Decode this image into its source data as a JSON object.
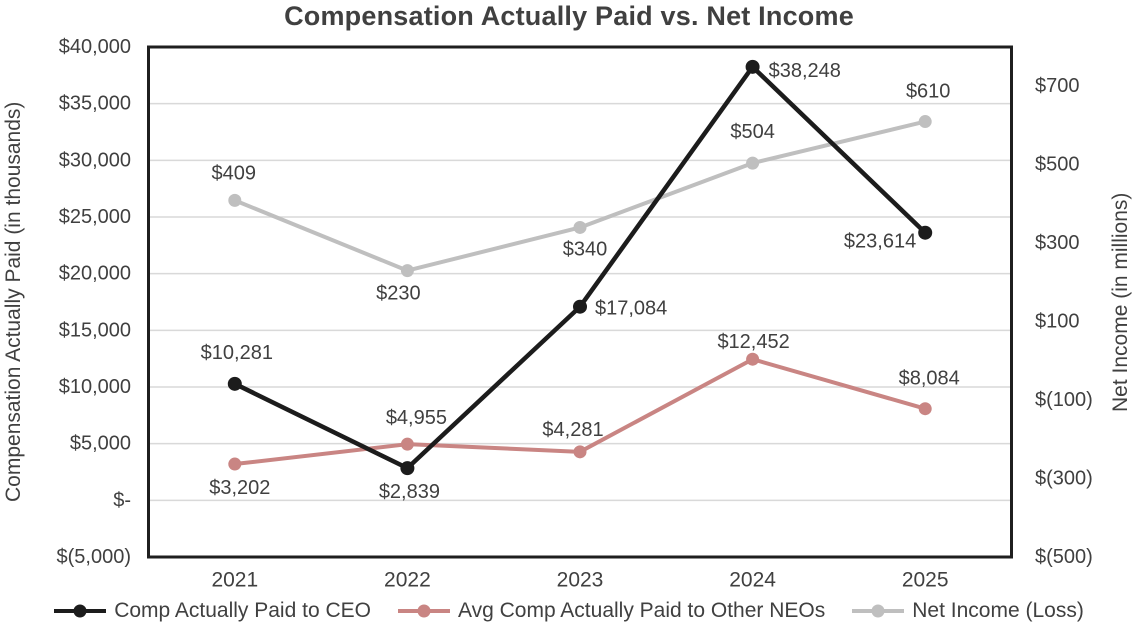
{
  "chart_data": {
    "type": "line",
    "title": "Compensation Actually Paid vs. Net Income",
    "categories": [
      "2021",
      "2022",
      "2023",
      "2024",
      "2025"
    ],
    "left_axis": {
      "label": "Compensation Actually Paid (in thousands)",
      "min": -5000,
      "max": 40000,
      "ticks": [
        {
          "v": -5000,
          "label": "$(5,000)"
        },
        {
          "v": 0,
          "label": "$-"
        },
        {
          "v": 5000,
          "label": "$5,000"
        },
        {
          "v": 10000,
          "label": "$10,000"
        },
        {
          "v": 15000,
          "label": "$15,000"
        },
        {
          "v": 20000,
          "label": "$20,000"
        },
        {
          "v": 25000,
          "label": "$25,000"
        },
        {
          "v": 30000,
          "label": "$30,000"
        },
        {
          "v": 35000,
          "label": "$35,000"
        },
        {
          "v": 40000,
          "label": "$40,000"
        }
      ]
    },
    "right_axis": {
      "label": "Net Income (in millions)",
      "min": -500,
      "max": 800,
      "ticks": [
        {
          "v": -500,
          "label": "$(500)"
        },
        {
          "v": -300,
          "label": "$(300)"
        },
        {
          "v": -100,
          "label": "$(100)"
        },
        {
          "v": 100,
          "label": "$100"
        },
        {
          "v": 300,
          "label": "$300"
        },
        {
          "v": 500,
          "label": "$500"
        },
        {
          "v": 700,
          "label": "$700"
        }
      ]
    },
    "grid": "horizontal",
    "legend_position": "bottom",
    "colors": {
      "frame": "#1f1f1f",
      "gridline": "#d9d9d9",
      "text": "#404040"
    },
    "series": [
      {
        "name": "Net Income (Loss)",
        "axis": "right",
        "color": "#bfbfbf",
        "line_width": 4,
        "marker_radius": 6.5,
        "values": [
          409,
          230,
          340,
          504,
          610
        ],
        "point_labels": [
          {
            "text": "$409",
            "dx": -1,
            "dy": -27,
            "anchor": "middle"
          },
          {
            "text": "$230",
            "dx": -9,
            "dy": 23,
            "anchor": "middle"
          },
          {
            "text": "$340",
            "dx": 5,
            "dy": 22,
            "anchor": "middle"
          },
          {
            "text": "$504",
            "dx": 0,
            "dy": -31,
            "anchor": "middle"
          },
          {
            "text": "$610",
            "dx": 3,
            "dy": -30,
            "anchor": "middle"
          }
        ]
      },
      {
        "name": "Avg Comp Actually Paid to Other NEOs",
        "axis": "left",
        "color": "#c98583",
        "line_width": 4,
        "marker_radius": 6.5,
        "values": [
          3202,
          4955,
          4281,
          12452,
          8084
        ],
        "point_labels": [
          {
            "text": "$3,202",
            "dx": 5,
            "dy": 24,
            "anchor": "middle"
          },
          {
            "text": "$4,955",
            "dx": 9,
            "dy": -26,
            "anchor": "middle"
          },
          {
            "text": "$4,281",
            "dx": -7,
            "dy": -22,
            "anchor": "middle"
          },
          {
            "text": "$12,452",
            "dx": 1,
            "dy": -17,
            "anchor": "middle"
          },
          {
            "text": "$8,084",
            "dx": 4,
            "dy": -30,
            "anchor": "middle"
          }
        ]
      },
      {
        "name": "Comp Actually Paid to CEO",
        "axis": "left",
        "color": "#1c1c1c",
        "line_width": 4.5,
        "marker_radius": 7,
        "values": [
          10281,
          2839,
          17084,
          38248,
          23614
        ],
        "point_labels": [
          {
            "text": "$10,281",
            "dx": 2,
            "dy": -31,
            "anchor": "middle"
          },
          {
            "text": "$2,839",
            "dx": 2,
            "dy": 24,
            "anchor": "middle"
          },
          {
            "text": "$17,084",
            "dx": 15,
            "dy": 2,
            "anchor": "start"
          },
          {
            "text": "$38,248",
            "dx": 16,
            "dy": 4,
            "anchor": "start"
          },
          {
            "text": "$23,614",
            "dx": -9,
            "dy": 9,
            "anchor": "end"
          }
        ]
      }
    ],
    "legend_order": [
      2,
      1,
      0
    ]
  }
}
